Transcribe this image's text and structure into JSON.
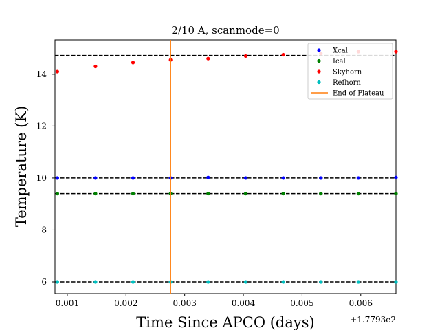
{
  "chart_data": {
    "type": "scatter",
    "title": "2/10 A, scanmode=0",
    "xlabel": "Time Since APCO (days)",
    "ylabel": "Temperature (K)",
    "x_offset_label": "+1.7793e2",
    "xlim": [
      0.00079,
      0.0066
    ],
    "ylim": [
      5.55,
      15.32
    ],
    "x_ticks": [
      0.001,
      0.002,
      0.003,
      0.004,
      0.005,
      0.006
    ],
    "x_tick_labels": [
      "0.001",
      "0.002",
      "0.003",
      "0.004",
      "0.005",
      "0.006"
    ],
    "y_ticks": [
      6,
      8,
      10,
      12,
      14
    ],
    "y_tick_labels": [
      "6",
      "8",
      "10",
      "12",
      "14"
    ],
    "grid": false,
    "legend_position": "top-right",
    "x": [
      0.00083,
      0.00148,
      0.00212,
      0.00276,
      0.0034,
      0.00404,
      0.00468,
      0.00532,
      0.00596,
      0.0066
    ],
    "series": [
      {
        "name": "Xcal",
        "color": "#0000ff",
        "values": [
          10.0,
          10.0,
          10.0,
          10.0,
          10.02,
          10.0,
          10.0,
          10.0,
          10.0,
          10.02
        ]
      },
      {
        "name": "Ical",
        "color": "#008000",
        "values": [
          9.4,
          9.4,
          9.4,
          9.4,
          9.4,
          9.4,
          9.4,
          9.4,
          9.4,
          9.4
        ]
      },
      {
        "name": "Skyhorn",
        "color": "#ff0000",
        "values": [
          14.1,
          14.3,
          14.45,
          14.55,
          14.6,
          14.7,
          14.75,
          14.8,
          14.87,
          14.87
        ]
      },
      {
        "name": "Refhorn",
        "color": "#00bfbf",
        "values": [
          6.0,
          6.0,
          6.0,
          6.0,
          6.0,
          6.0,
          6.0,
          6.0,
          6.0,
          6.0
        ]
      }
    ],
    "reference_lines_y": [
      14.72,
      10.0,
      9.4,
      6.0
    ],
    "vertical_line": {
      "name": "End of Plateau",
      "x": 0.00276,
      "color": "#ff7f0e"
    }
  }
}
